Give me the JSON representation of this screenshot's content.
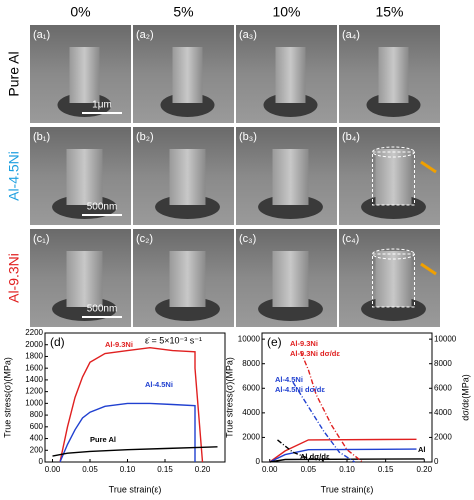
{
  "grid": {
    "headers": [
      "0%",
      "5%",
      "10%",
      "15%"
    ],
    "rows": [
      {
        "label": "Pure Al",
        "panels": [
          "(a₁)",
          "(a₂)",
          "(a₃)",
          "(a₄)"
        ],
        "scale": "1μm"
      },
      {
        "label": "Al-4.5Ni",
        "panels": [
          "(b₁)",
          "(b₂)",
          "(b₃)",
          "(b₄)"
        ],
        "scale": "500nm"
      },
      {
        "label": "Al-9.3Ni",
        "panels": [
          "(c₁)",
          "(c₂)",
          "(c₃)",
          "(c₄)"
        ],
        "scale": "500nm"
      }
    ]
  },
  "chart_data": [
    {
      "type": "line",
      "panel": "(d)",
      "annotation": "ε̇ = 5×10⁻³ s⁻¹",
      "xlabel": "True strain(ε)",
      "ylabel": "True stress(σ)(MPa)",
      "xlim": [
        -0.01,
        0.23
      ],
      "xticks": [
        {
          "value": 0,
          "label": "0.00"
        },
        {
          "value": 0.05,
          "label": "0.05"
        },
        {
          "value": 0.1,
          "label": "0.10"
        },
        {
          "value": 0.15,
          "label": "0.15"
        },
        {
          "value": 0.2,
          "label": "0.20"
        }
      ],
      "ylim": [
        0,
        2200
      ],
      "yticks": [
        0,
        200,
        400,
        600,
        800,
        1000,
        1200,
        1400,
        1600,
        1800,
        2000,
        2200
      ],
      "series": [
        {
          "name": "Al-9.3Ni",
          "color": "#e02020",
          "x": [
            0.01,
            0.02,
            0.03,
            0.04,
            0.05,
            0.07,
            0.1,
            0.13,
            0.16,
            0.19,
            0.19,
            0.2
          ],
          "values": [
            0,
            600,
            1100,
            1450,
            1700,
            1850,
            1900,
            1950,
            1900,
            1880,
            1600,
            0
          ]
        },
        {
          "name": "Al-4.5Ni",
          "color": "#2040d0",
          "x": [
            0.01,
            0.02,
            0.03,
            0.04,
            0.05,
            0.07,
            0.1,
            0.13,
            0.16,
            0.19,
            0.19
          ],
          "values": [
            0,
            300,
            550,
            750,
            850,
            950,
            1000,
            1000,
            980,
            960,
            0
          ]
        },
        {
          "name": "Pure Al",
          "color": "#000000",
          "x": [
            0,
            0.02,
            0.05,
            0.1,
            0.15,
            0.2,
            0.22
          ],
          "values": [
            100,
            150,
            180,
            210,
            230,
            250,
            260
          ]
        }
      ]
    },
    {
      "type": "line",
      "panel": "(e)",
      "xlabel": "True strain(ε)",
      "ylabel": "True stress(σ)(MPa)",
      "y2label": "dσ/dε(MPa)",
      "xlim": [
        -0.01,
        0.21
      ],
      "xticks": [
        {
          "value": 0,
          "label": "0.00"
        },
        {
          "value": 0.05,
          "label": "0.05"
        },
        {
          "value": 0.1,
          "label": "0.10"
        },
        {
          "value": 0.15,
          "label": "0.15"
        },
        {
          "value": 0.2,
          "label": "0.20"
        }
      ],
      "ylim": [
        0,
        10500
      ],
      "yticks": [
        0,
        2000,
        4000,
        6000,
        8000,
        10000
      ],
      "y2lim": [
        0,
        10500
      ],
      "y2ticks": [
        0,
        2000,
        4000,
        6000,
        8000,
        10000
      ],
      "series": [
        {
          "name": "Al-9.3Ni",
          "color": "#e02020",
          "x": [
            0,
            0.02,
            0.05,
            0.19
          ],
          "values": [
            0,
            900,
            1800,
            1850
          ]
        },
        {
          "name": "Al-4.5Ni",
          "color": "#2040d0",
          "x": [
            0,
            0.02,
            0.05,
            0.19
          ],
          "values": [
            0,
            600,
            1000,
            1050
          ]
        },
        {
          "name": "Al",
          "color": "#000000",
          "x": [
            0,
            0.02,
            0.2
          ],
          "values": [
            0,
            200,
            250
          ]
        },
        {
          "name": "Al-9.3Ni dσ/dε",
          "color": "#e02020",
          "axis": "y2",
          "dash": true,
          "x": [
            0.04,
            0.05,
            0.06,
            0.08,
            0.1,
            0.12
          ],
          "values": [
            9000,
            7500,
            5500,
            3000,
            1000,
            0
          ]
        },
        {
          "name": "Al-4.5Ni dσ/dε",
          "color": "#2040d0",
          "axis": "y2",
          "dash": true,
          "x": [
            0.03,
            0.05,
            0.07,
            0.09,
            0.11
          ],
          "values": [
            6500,
            4500,
            2500,
            800,
            0
          ]
        },
        {
          "name": "Al dσ/dε",
          "color": "#000000",
          "axis": "y2",
          "dash": true,
          "x": [
            0.01,
            0.03,
            0.05,
            0.07
          ],
          "values": [
            1800,
            800,
            300,
            100
          ]
        }
      ]
    }
  ]
}
